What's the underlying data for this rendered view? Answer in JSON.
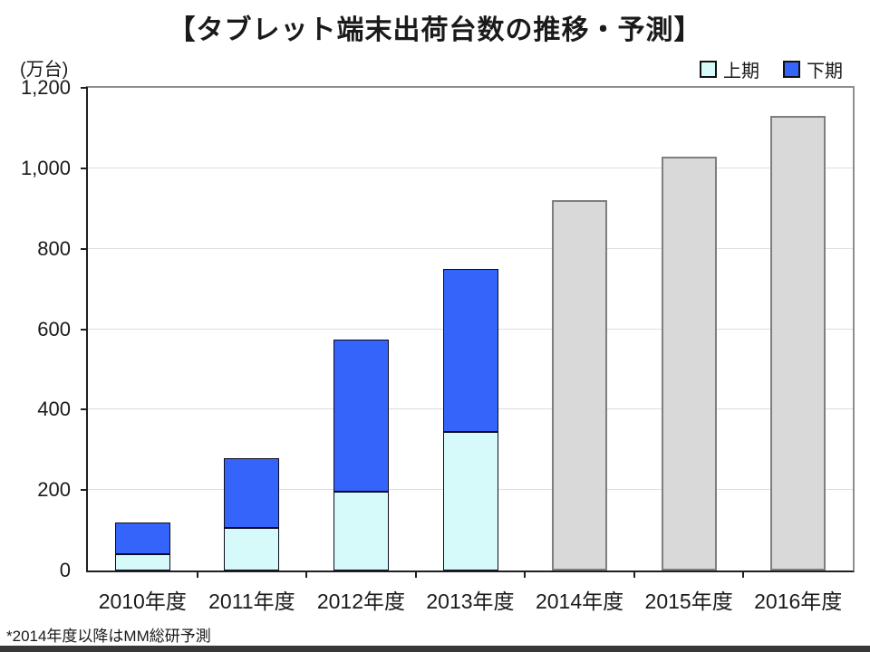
{
  "title": "【タブレット端末出荷台数の推移・予測】",
  "y_axis": {
    "unit_label": "(万台)",
    "ticks": [
      "0",
      "200",
      "400",
      "600",
      "800",
      "1,000",
      "1,200"
    ]
  },
  "legend": {
    "items": [
      {
        "label": "上期",
        "color": "#d6fafa"
      },
      {
        "label": "下期",
        "color": "#3464f9"
      }
    ]
  },
  "footnote": "*2014年度以降はMM総研予測",
  "colors": {
    "first_half_fill": "#d6fafa",
    "second_half_fill": "#3464f9",
    "actual_bar_border": "#0c0c20",
    "forecast_fill": "#d9d9d9",
    "forecast_border": "#7f7f7f",
    "axis": "#1f1f1f",
    "frame": "#8f8f8f",
    "gridline": "#dedede"
  },
  "chart_data": {
    "type": "bar",
    "stacked": true,
    "title": "【タブレット端末出荷台数の推移・予測】",
    "ylabel": "(万台)",
    "categories": [
      "2010年度",
      "2011年度",
      "2012年度",
      "2013年度",
      "2014年度",
      "2015年度",
      "2016年度"
    ],
    "series": [
      {
        "name": "上期",
        "color": "#d6fafa",
        "values": [
          40,
          105,
          195,
          345,
          null,
          null,
          null
        ]
      },
      {
        "name": "下期",
        "color": "#3464f9",
        "values": [
          80,
          175,
          380,
          405,
          null,
          null,
          null
        ]
      }
    ],
    "forecast_totals": {
      "name": "MM総研予測(合計)",
      "color": "#d9d9d9",
      "values": [
        null,
        null,
        null,
        null,
        920,
        1030,
        1130
      ]
    },
    "totals": [
      120,
      280,
      575,
      750,
      920,
      1030,
      1130
    ],
    "ylim": [
      0,
      1200
    ],
    "ytick_interval": 200,
    "grid": true,
    "legend_position": "top-right",
    "annotation": "*2014年度以降はMM総研予測"
  }
}
